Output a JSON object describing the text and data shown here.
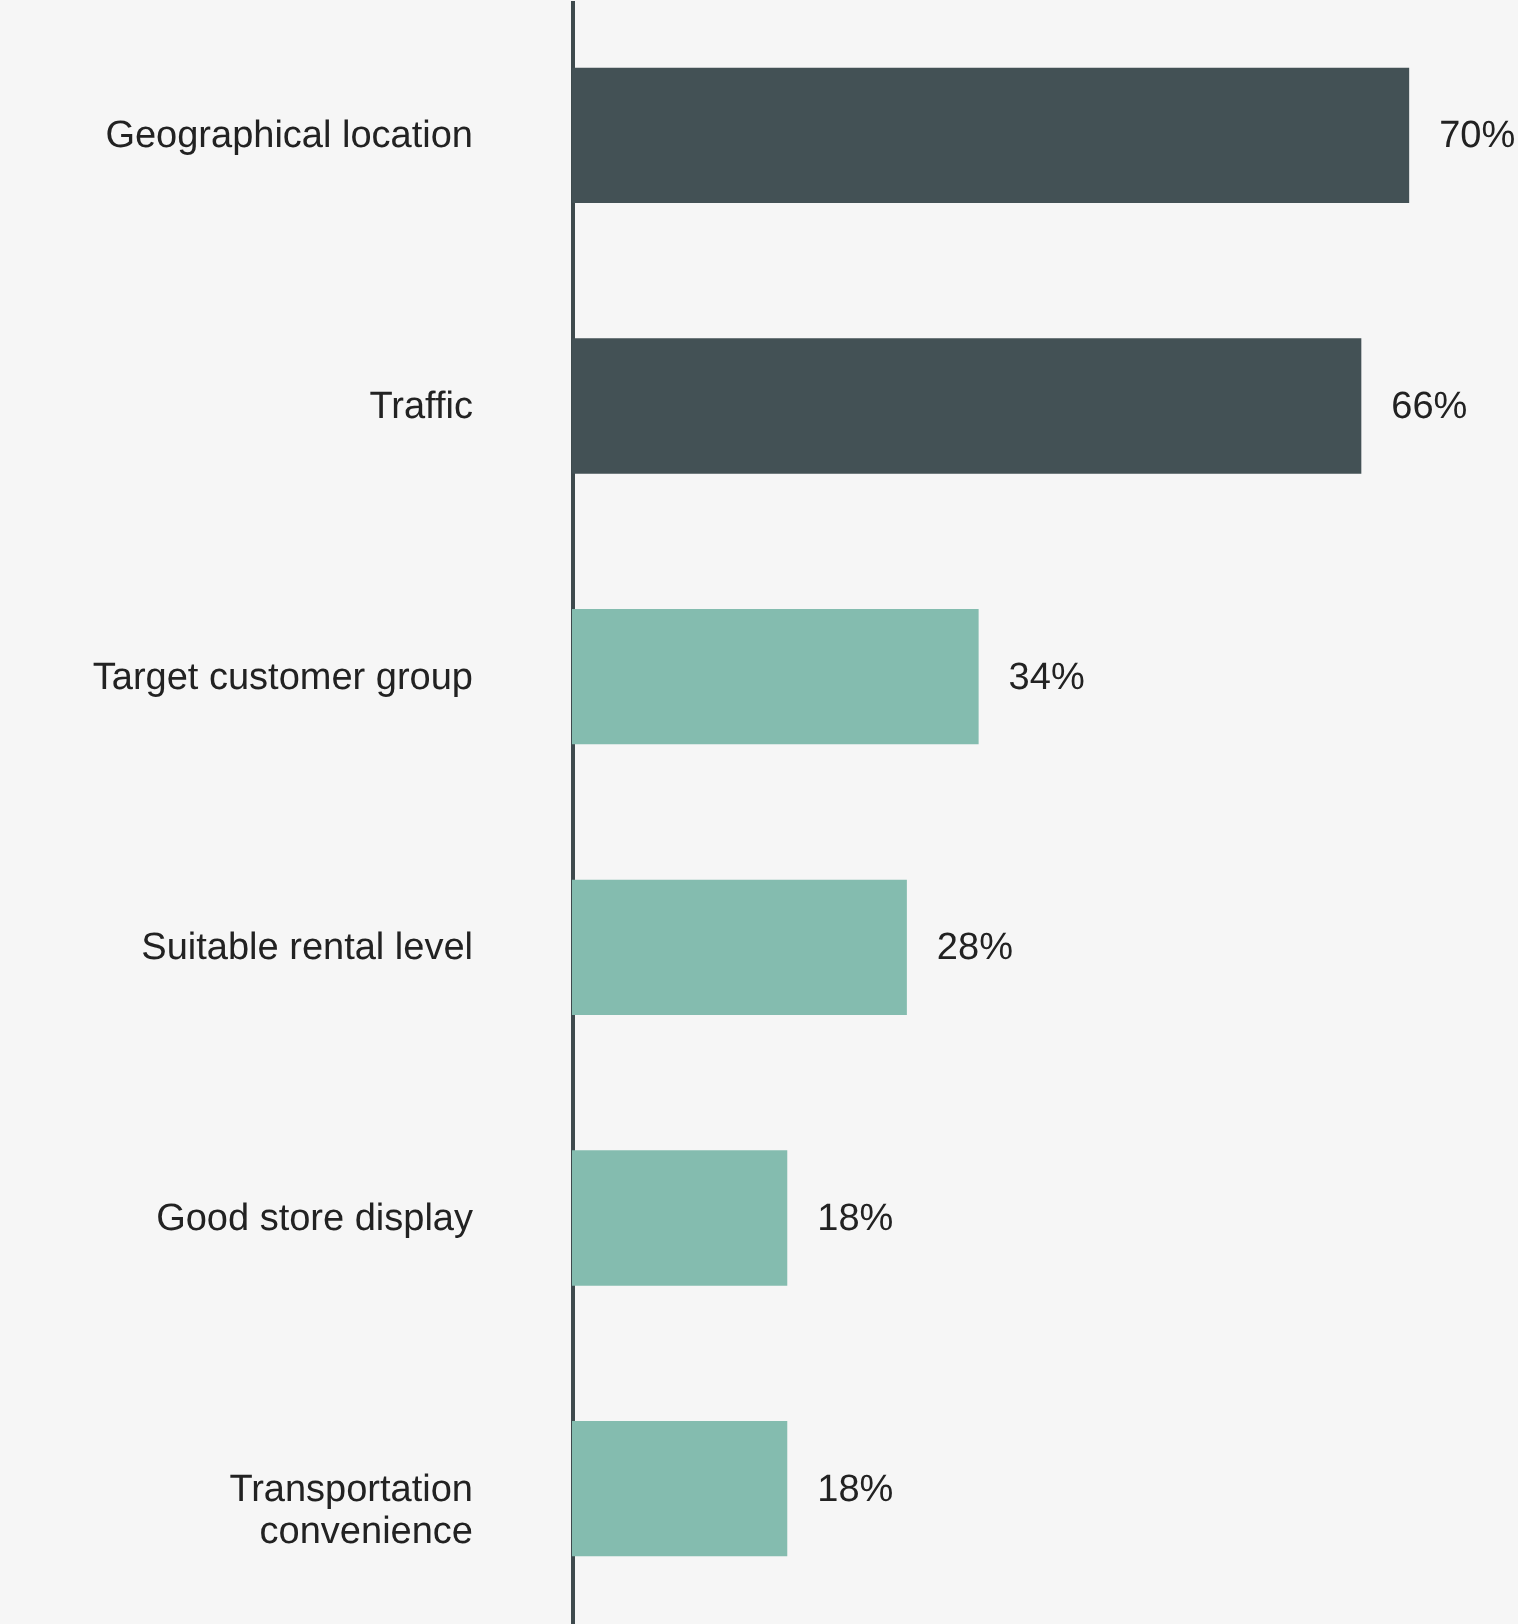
{
  "chart_data": {
    "type": "bar",
    "orientation": "horizontal",
    "data_labels": true,
    "categories": [
      "Geographical location",
      "Traffic",
      "Target customer group",
      "Suitable rental level",
      "Good store display",
      "Transportation convenience"
    ],
    "values": [
      70,
      66,
      34,
      28,
      18,
      18
    ],
    "colors": [
      "#435155",
      "#435155",
      "#84bcaf",
      "#84bcaf",
      "#84bcaf",
      "#84bcaf"
    ],
    "value_labels": [
      "70%",
      "66%",
      "34%",
      "28%",
      "18%",
      "18%"
    ]
  }
}
